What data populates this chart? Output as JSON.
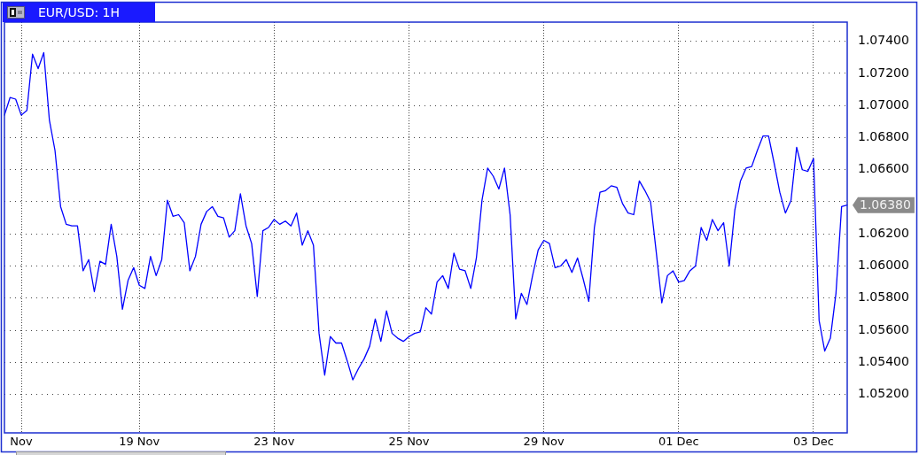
{
  "chart_data": {
    "type": "line",
    "title": "EUR/USD: 1H",
    "categories": [
      null,
      null,
      null,
      "Nov",
      null,
      null,
      null,
      null,
      null,
      null,
      null,
      null,
      null,
      null,
      null,
      null,
      null,
      null,
      null,
      null,
      null,
      null,
      null,
      null,
      "19 Nov",
      null,
      null,
      null,
      null,
      null,
      null,
      null,
      null,
      null,
      null,
      null,
      null,
      null,
      null,
      null,
      null,
      null,
      null,
      null,
      null,
      null,
      null,
      null,
      "23 Nov",
      null,
      null,
      null,
      null,
      null,
      null,
      null,
      null,
      null,
      null,
      null,
      null,
      null,
      null,
      null,
      null,
      null,
      null,
      null,
      null,
      null,
      null,
      null,
      "25 Nov",
      null,
      null,
      null,
      null,
      null,
      null,
      null,
      null,
      null,
      null,
      null,
      null,
      null,
      null,
      null,
      null,
      null,
      null,
      null,
      null,
      null,
      null,
      null,
      "29 Nov",
      null,
      null,
      null,
      null,
      null,
      null,
      null,
      null,
      null,
      null,
      null,
      null,
      null,
      null,
      null,
      null,
      null,
      null,
      null,
      null,
      null,
      null,
      null,
      "01 Dec",
      null,
      null,
      null,
      null,
      null,
      null,
      null,
      null,
      null,
      null,
      null,
      null,
      null,
      null,
      null,
      null,
      null,
      null,
      null,
      null,
      null,
      null,
      null,
      "03 Dec",
      null,
      null,
      null,
      null,
      null,
      null
    ],
    "values": [
      1.0694,
      1.0705,
      1.0704,
      1.0694,
      1.0697,
      1.0732,
      1.0723,
      1.0733,
      1.0691,
      1.0672,
      1.0637,
      1.0626,
      1.0625,
      1.0625,
      1.0597,
      1.0604,
      1.0584,
      1.0603,
      1.0601,
      1.0626,
      1.0606,
      1.0573,
      1.0591,
      1.0599,
      1.0588,
      1.0586,
      1.0606,
      1.0594,
      1.0604,
      1.0641,
      1.0631,
      1.0632,
      1.0627,
      1.0597,
      1.0606,
      1.0626,
      1.0634,
      1.0637,
      1.0631,
      1.063,
      1.0618,
      1.0622,
      1.0645,
      1.0625,
      1.0614,
      1.0581,
      1.0622,
      1.0624,
      1.0629,
      1.0626,
      1.0628,
      1.0625,
      1.0633,
      1.0613,
      1.0622,
      1.0613,
      1.0558,
      1.0532,
      1.0556,
      1.0552,
      1.0552,
      1.0541,
      1.0529,
      1.0536,
      1.0542,
      1.055,
      1.0567,
      1.0553,
      1.0572,
      1.0558,
      1.0555,
      1.0553,
      1.0556,
      1.0558,
      1.0559,
      1.0574,
      1.057,
      1.059,
      1.0594,
      1.0586,
      1.0608,
      1.0598,
      1.0597,
      1.0586,
      1.0605,
      1.0641,
      1.0661,
      1.0656,
      1.0648,
      1.0661,
      1.0632,
      1.0567,
      1.0583,
      1.0576,
      1.0594,
      1.061,
      1.0616,
      1.0614,
      1.0599,
      1.06,
      1.0604,
      1.0596,
      1.0605,
      1.0592,
      1.0578,
      1.0624,
      1.0646,
      1.0647,
      1.065,
      1.0649,
      1.0639,
      1.0633,
      1.0632,
      1.0653,
      1.0647,
      1.064,
      1.0609,
      1.0577,
      1.0594,
      1.0597,
      1.059,
      1.0591,
      1.0597,
      1.06,
      1.0624,
      1.0616,
      1.0629,
      1.0622,
      1.0627,
      1.06,
      1.0635,
      1.0653,
      1.0661,
      1.0662,
      1.0672,
      1.0681,
      1.0681,
      1.0664,
      1.0646,
      1.0633,
      1.0641,
      1.0674,
      1.066,
      1.0659,
      1.0667,
      1.0566,
      1.0547,
      1.0555,
      1.0583,
      1.0637,
      1.0638
    ],
    "color": "#0000ff",
    "ylim": [
      1.0496,
      1.0752
    ],
    "yticks": [
      {
        "value": 1.052,
        "label": "1.05200"
      },
      {
        "value": 1.054,
        "label": "1.05400"
      },
      {
        "value": 1.056,
        "label": "1.05600"
      },
      {
        "value": 1.058,
        "label": "1.05800"
      },
      {
        "value": 1.06,
        "label": "1.06000"
      },
      {
        "value": 1.062,
        "label": "1.06200"
      },
      {
        "value": 1.064,
        "label": null
      },
      {
        "value": 1.066,
        "label": "1.06600"
      },
      {
        "value": 1.068,
        "label": "1.06800"
      },
      {
        "value": 1.07,
        "label": "1.07000"
      },
      {
        "value": 1.072,
        "label": "1.07200"
      },
      {
        "value": 1.074,
        "label": "1.07400"
      }
    ],
    "grid": true,
    "legend": false,
    "marker": "none",
    "annotations": [
      "1.06380"
    ]
  }
}
